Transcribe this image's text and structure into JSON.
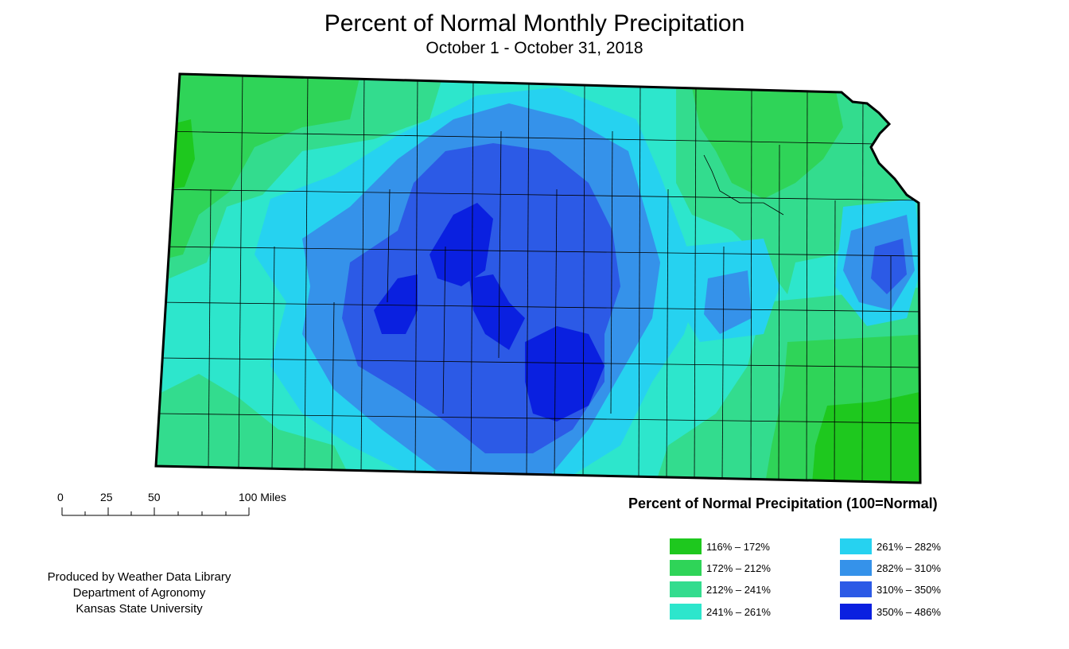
{
  "title": "Percent of Normal Monthly Precipitation",
  "subtitle": "October 1 - October 31, 2018",
  "scale_bar": {
    "labels": [
      "0",
      "25",
      "50",
      "100 Miles"
    ]
  },
  "legend": {
    "title": "Percent of Normal Precipitation (100=Normal)",
    "items": [
      {
        "label": "116% – 172%",
        "color": "#1ec81e"
      },
      {
        "label": "172% – 212%",
        "color": "#2fd458"
      },
      {
        "label": "212% – 241%",
        "color": "#33dc8e"
      },
      {
        "label": "241% – 261%",
        "color": "#2de6cc"
      },
      {
        "label": "261% – 282%",
        "color": "#26d2f0"
      },
      {
        "label": "282% – 310%",
        "color": "#3592ea"
      },
      {
        "label": "310% – 350%",
        "color": "#2c5ae6"
      },
      {
        "label": "350% – 486%",
        "color": "#0a20e0"
      }
    ]
  },
  "credits": {
    "line1": "Produced by Weather Data Library",
    "line2": "Department of Agronomy",
    "line3": "Kansas State University"
  }
}
